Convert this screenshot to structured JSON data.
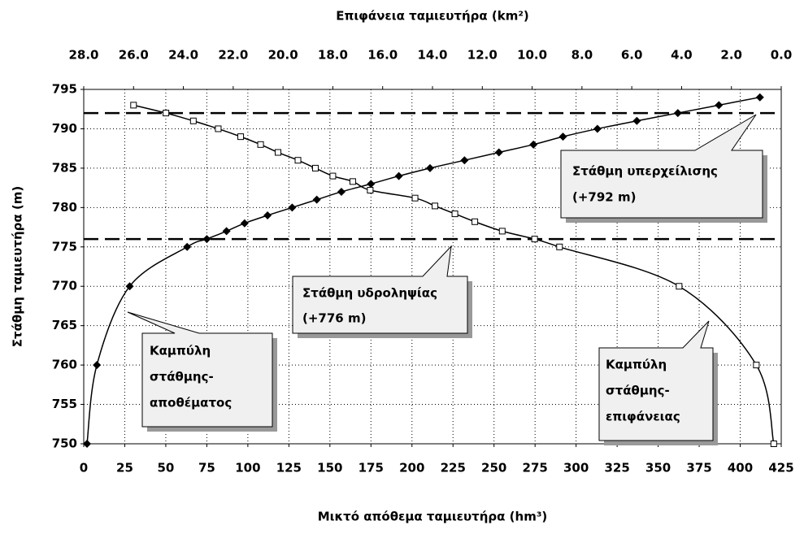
{
  "chart_data": {
    "type": "line",
    "x_label": "Μικτό απόθεμα ταμιευτήρα (hm³)",
    "x2_label": "Επιφάνεια ταμιευτήρα (km²)",
    "y_label": "Στάθμη ταμιευτήρα (m)",
    "xlim": [
      0,
      425
    ],
    "xticks": [
      0,
      25,
      50,
      75,
      100,
      125,
      150,
      175,
      200,
      225,
      250,
      275,
      300,
      325,
      350,
      375,
      400,
      425
    ],
    "x2lim": [
      28,
      0
    ],
    "x2ticks": [
      {
        "value": 28,
        "label": "28.0"
      },
      {
        "value": 26,
        "label": "26.0"
      },
      {
        "value": 24,
        "label": "24.0"
      },
      {
        "value": 22,
        "label": "22.0"
      },
      {
        "value": 20,
        "label": "20.0"
      },
      {
        "value": 18,
        "label": "18.0"
      },
      {
        "value": 16,
        "label": "16.0"
      },
      {
        "value": 14,
        "label": "14.0"
      },
      {
        "value": 12,
        "label": "12.0"
      },
      {
        "value": 10,
        "label": "10.0"
      },
      {
        "value": 8,
        "label": "8.0"
      },
      {
        "value": 6,
        "label": "6.0"
      },
      {
        "value": 4,
        "label": "4.0"
      },
      {
        "value": 2,
        "label": "2.0"
      },
      {
        "value": 0,
        "label": "0.0"
      }
    ],
    "ylim": [
      750,
      795
    ],
    "yticks": [
      750,
      755,
      760,
      765,
      770,
      775,
      780,
      785,
      790,
      795
    ],
    "grid": true,
    "series": [
      {
        "color": "#000000",
        "marker": "diamond",
        "axis": "x",
        "x": [
          2,
          8,
          28,
          63,
          75,
          87,
          98,
          112,
          127,
          142,
          157,
          175,
          192,
          211,
          232,
          253,
          274,
          292,
          313,
          337,
          362,
          387,
          412
        ],
        "values": [
          750,
          760,
          770,
          775,
          776,
          777,
          778,
          779,
          780,
          781,
          782,
          783,
          784,
          785,
          786,
          787,
          788,
          789,
          790,
          791,
          792,
          793,
          794
        ]
      },
      {
        "color": "#000000",
        "marker": "square",
        "axis": "x2",
        "x": [
          26.0,
          24.7,
          23.6,
          22.6,
          21.7,
          20.9,
          20.2,
          19.4,
          18.7,
          18.0,
          17.2,
          16.5,
          14.7,
          13.9,
          13.1,
          12.3,
          11.2,
          9.9,
          8.9,
          4.1,
          1.0,
          0.3
        ],
        "values": [
          793,
          792,
          791,
          790,
          789,
          788,
          787,
          786,
          785,
          784,
          783.3,
          782.2,
          781.2,
          780.2,
          779.2,
          778.2,
          777,
          776,
          775,
          770,
          760,
          750
        ]
      }
    ],
    "hlines": [
      792,
      776
    ],
    "annotations": [
      {
        "lines": [
          "Στάθμη υπερχείλισης",
          "(+792 m)"
        ]
      },
      {
        "lines": [
          "Στάθμη υδροληψίας",
          "(+776 m)"
        ]
      },
      {
        "lines": [
          "Καμπύλη",
          "στάθμης-",
          "αποθέματος"
        ]
      },
      {
        "lines": [
          "Καμπύλη",
          "στάθμης-",
          "επιφάνειας"
        ]
      }
    ]
  }
}
